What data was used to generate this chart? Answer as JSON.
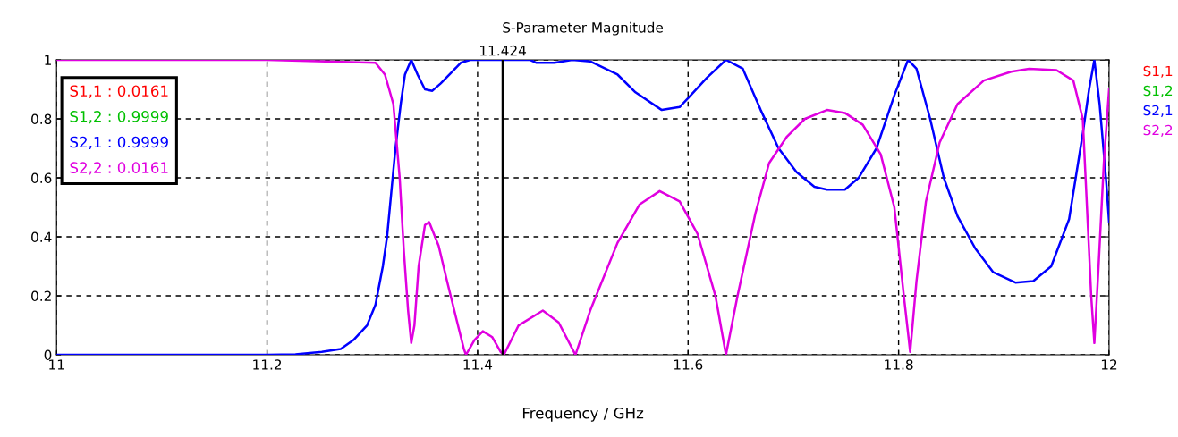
{
  "chart_data": {
    "type": "line",
    "title": "S-Parameter Magnitude",
    "xlabel": "Frequency / GHz",
    "xlim": [
      11,
      12
    ],
    "xticks": [
      11,
      11.2,
      11.4,
      11.6,
      11.8,
      12
    ],
    "ylim": [
      0,
      1
    ],
    "yticks": [
      0,
      0.2,
      0.4,
      0.6,
      0.8,
      1
    ],
    "grid": true,
    "legend": "right",
    "line_style": "solid",
    "marker": "none",
    "annotations": [
      "S1,1 : 0.0161",
      "S1,2 : 0.9999",
      "S2,1 : 0.9999",
      "S2,2 : 0.0161"
    ],
    "ref_lines": [
      {
        "axis": "x",
        "value": 11.424,
        "label": "11.424",
        "color": "#000000",
        "line_style": "solid"
      }
    ],
    "series": [
      {
        "name": "S1,1",
        "color": "#ff0000"
      },
      {
        "name": "S1,2",
        "color": "#00c000"
      },
      {
        "name": "S2,1",
        "color": "#0000ff",
        "x": [
          11,
          11.2,
          11.227,
          11.252,
          11.27,
          11.282,
          11.295,
          11.303,
          11.31,
          11.314,
          11.318,
          11.322,
          11.327,
          11.331,
          11.337,
          11.343,
          11.35,
          11.357,
          11.365,
          11.376,
          11.384,
          11.393,
          11.45,
          11.456,
          11.473,
          11.49,
          11.507,
          11.533,
          11.55,
          11.575,
          11.592,
          11.6,
          11.618,
          11.636,
          11.652,
          11.669,
          11.686,
          11.703,
          11.72,
          11.732,
          11.749,
          11.762,
          11.779,
          11.796,
          11.809,
          11.817,
          11.83,
          11.843,
          11.856,
          11.873,
          11.89,
          11.911,
          11.928,
          11.945,
          11.962,
          11.975,
          11.981,
          11.986,
          11.991,
          11.997,
          12.0
        ],
        "values": [
          0,
          0,
          0.002,
          0.01,
          0.02,
          0.05,
          0.1,
          0.17,
          0.3,
          0.4,
          0.55,
          0.7,
          0.85,
          0.95,
          1.0,
          0.95,
          0.9,
          0.895,
          0.92,
          0.96,
          0.99,
          1.0,
          1.0,
          0.99,
          0.99,
          1.0,
          0.995,
          0.95,
          0.89,
          0.83,
          0.84,
          0.87,
          0.94,
          1.0,
          0.97,
          0.83,
          0.7,
          0.62,
          0.57,
          0.56,
          0.56,
          0.6,
          0.7,
          0.88,
          1.0,
          0.97,
          0.8,
          0.6,
          0.47,
          0.36,
          0.28,
          0.245,
          0.25,
          0.3,
          0.46,
          0.75,
          0.9,
          1.0,
          0.85,
          0.6,
          0.45
        ]
      },
      {
        "name": "S2,2",
        "color": "#e000e0",
        "x": [
          11,
          11.2,
          11.303,
          11.312,
          11.32,
          11.326,
          11.33,
          11.334,
          11.337,
          11.34,
          11.344,
          11.35,
          11.354,
          11.363,
          11.371,
          11.38,
          11.387,
          11.389,
          11.397,
          11.405,
          11.414,
          11.422,
          11.425,
          11.439,
          11.462,
          11.477,
          11.493,
          11.507,
          11.533,
          11.554,
          11.573,
          11.592,
          11.609,
          11.626,
          11.636,
          11.647,
          11.664,
          11.677,
          11.694,
          11.711,
          11.732,
          11.749,
          11.766,
          11.783,
          11.796,
          11.805,
          11.811,
          11.817,
          11.826,
          11.839,
          11.856,
          11.881,
          11.907,
          11.924,
          11.95,
          11.966,
          11.975,
          11.979,
          11.983,
          11.986,
          11.99,
          11.995,
          12.0
        ],
        "values": [
          1.0,
          1.0,
          0.99,
          0.95,
          0.85,
          0.6,
          0.35,
          0.15,
          0.04,
          0.1,
          0.3,
          0.44,
          0.45,
          0.37,
          0.25,
          0.12,
          0.02,
          0.0,
          0.05,
          0.08,
          0.06,
          0.01,
          0.0,
          0.1,
          0.15,
          0.11,
          0.0,
          0.15,
          0.38,
          0.51,
          0.555,
          0.52,
          0.41,
          0.2,
          0.0,
          0.2,
          0.48,
          0.65,
          0.74,
          0.8,
          0.83,
          0.82,
          0.78,
          0.68,
          0.5,
          0.2,
          0.01,
          0.25,
          0.52,
          0.72,
          0.85,
          0.93,
          0.96,
          0.97,
          0.965,
          0.93,
          0.8,
          0.5,
          0.2,
          0.04,
          0.3,
          0.65,
          0.9
        ]
      }
    ]
  }
}
